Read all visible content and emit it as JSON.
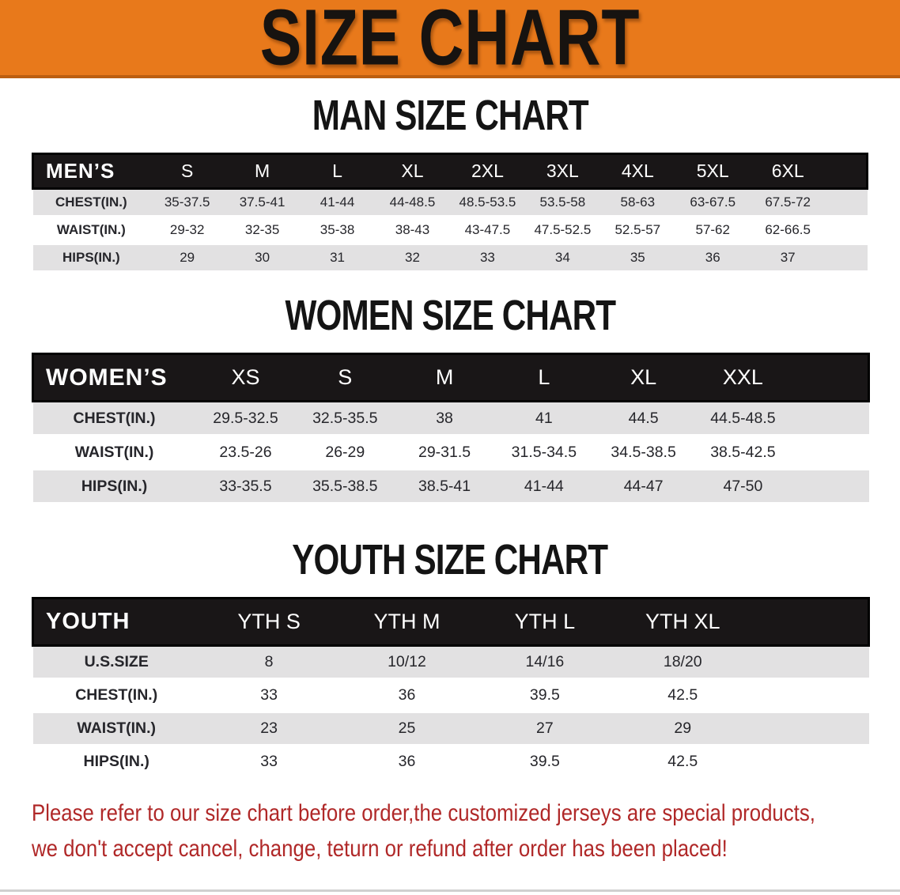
{
  "banner": {
    "title": "SIZE CHART"
  },
  "chart_data": [
    {
      "type": "table",
      "title": "MAN SIZE CHART",
      "header": [
        "MEN’S",
        "S",
        "M",
        "L",
        "XL",
        "2XL",
        "3XL",
        "4XL",
        "5XL",
        "6XL"
      ],
      "rows": [
        [
          "CHEST(IN.)",
          "35-37.5",
          "37.5-41",
          "41-44",
          "44-48.5",
          "48.5-53.5",
          "53.5-58",
          "58-63",
          "63-67.5",
          "67.5-72"
        ],
        [
          "WAIST(IN.)",
          "29-32",
          "32-35",
          "35-38",
          "38-43",
          "43-47.5",
          "47.5-52.5",
          "52.5-57",
          "57-62",
          "62-66.5"
        ],
        [
          "HIPS(IN.)",
          "29",
          "30",
          "31",
          "32",
          "33",
          "34",
          "35",
          "36",
          "37"
        ]
      ]
    },
    {
      "type": "table",
      "title": "WOMEN SIZE CHART",
      "header": [
        "WOMEN’S",
        "XS",
        "S",
        "M",
        "L",
        "XL",
        "XXL"
      ],
      "rows": [
        [
          "CHEST(IN.)",
          "29.5-32.5",
          "32.5-35.5",
          "38",
          "41",
          "44.5",
          "44.5-48.5"
        ],
        [
          "WAIST(IN.)",
          "23.5-26",
          "26-29",
          "29-31.5",
          "31.5-34.5",
          "34.5-38.5",
          "38.5-42.5"
        ],
        [
          "HIPS(IN.)",
          "33-35.5",
          "35.5-38.5",
          "38.5-41",
          "41-44",
          "44-47",
          "47-50"
        ]
      ]
    },
    {
      "type": "table",
      "title": "YOUTH SIZE CHART",
      "header": [
        "YOUTH",
        "YTH S",
        "YTH M",
        "YTH L",
        "YTH XL"
      ],
      "rows": [
        [
          "U.S.SIZE",
          "8",
          "10/12",
          "14/16",
          "18/20"
        ],
        [
          "CHEST(IN.)",
          "33",
          "36",
          "39.5",
          "42.5"
        ],
        [
          "WAIST(IN.)",
          "23",
          "25",
          "27",
          "29"
        ],
        [
          "HIPS(IN.)",
          "33",
          "36",
          "39.5",
          "42.5"
        ]
      ]
    }
  ],
  "footer": {
    "line1": "Please refer to our size chart before order,the customized jerseys are special products,",
    "line2": "we don't accept cancel, change, teturn or refund after order has been placed!"
  },
  "colors": {
    "banner_bg": "#E8791B",
    "banner_border": "#BC5E10",
    "header_bar": "#191617",
    "stripe": "#E2E1E2",
    "heading_text": "#141414",
    "value_text": "#26262B",
    "footer_text": "#B02828"
  }
}
